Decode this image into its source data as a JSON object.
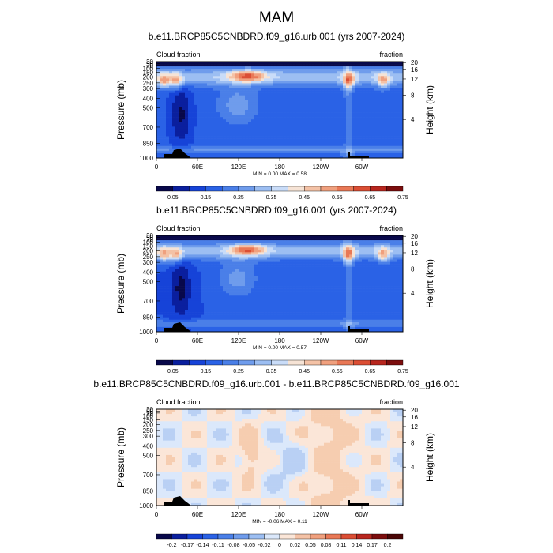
{
  "main_title": "MAM",
  "chart_data": [
    {
      "type": "heatmap",
      "title": "b.e11.BRCP85C5CNBDRD.f09_g16.urb.001 (yrs 2007-2024)",
      "left_label": "Cloud fraction",
      "right_label": "fraction",
      "ylabel": "Pressure (mb)",
      "ylabel_right": "Height (km)",
      "x_ticks": [
        "0",
        "60E",
        "120E",
        "180",
        "120W",
        "60W"
      ],
      "y_ticks": [
        "30",
        "50",
        "70",
        "100",
        "150",
        "200",
        "250",
        "300",
        "400",
        "500",
        "700",
        "850",
        "1000"
      ],
      "y_right_ticks": [
        "20",
        "16",
        "12",
        "8",
        "4"
      ],
      "stats": "MIN =   0.00  MAX =   0.58",
      "colorbar_labels": [
        "0.05",
        "0.15",
        "0.25",
        "0.35",
        "0.45",
        "0.55",
        "0.65",
        "0.75"
      ],
      "min": 0.0,
      "max": 0.58
    },
    {
      "type": "heatmap",
      "title": "b.e11.BRCP85C5CNBDRD.f09_g16.001 (yrs 2007-2024)",
      "left_label": "Cloud fraction",
      "right_label": "fraction",
      "ylabel": "Pressure (mb)",
      "ylabel_right": "Height (km)",
      "x_ticks": [
        "0",
        "60E",
        "120E",
        "180",
        "120W",
        "60W"
      ],
      "y_ticks": [
        "30",
        "50",
        "70",
        "100",
        "150",
        "200",
        "250",
        "300",
        "400",
        "500",
        "700",
        "850",
        "1000"
      ],
      "y_right_ticks": [
        "20",
        "16",
        "12",
        "8",
        "4"
      ],
      "stats": "MIN =   0.00  MAX =   0.57",
      "colorbar_labels": [
        "0.05",
        "0.15",
        "0.25",
        "0.35",
        "0.45",
        "0.55",
        "0.65",
        "0.75"
      ],
      "min": 0.0,
      "max": 0.57
    },
    {
      "type": "heatmap",
      "title": "b.e11.BRCP85C5CNBDRD.f09_g16.urb.001 - b.e11.BRCP85C5CNBDRD.f09_g16.001",
      "left_label": "Cloud fraction",
      "right_label": "fraction",
      "ylabel": "Pressure (mb)",
      "ylabel_right": "Height (km)",
      "x_ticks": [
        "0",
        "60E",
        "120E",
        "180",
        "120W",
        "60W"
      ],
      "y_ticks": [
        "30",
        "50",
        "70",
        "100",
        "150",
        "200",
        "250",
        "300",
        "400",
        "500",
        "700",
        "850",
        "1000"
      ],
      "y_right_ticks": [
        "20",
        "16",
        "12",
        "8",
        "4"
      ],
      "stats": "MIN =  -0.06  MAX =   0.11",
      "colorbar_labels": [
        "-0.2",
        "-0.17",
        "-0.14",
        "-0.11",
        "-0.08",
        "-0.05",
        "-0.02",
        "0",
        "0.02",
        "0.05",
        "0.08",
        "0.11",
        "0.14",
        "0.17",
        "0.2"
      ],
      "min": -0.06,
      "max": 0.11
    }
  ],
  "colors": {
    "seq": [
      "#08084a",
      "#0a1f9e",
      "#1643d8",
      "#2a62e6",
      "#4a7fe8",
      "#6f9cec",
      "#9cbef2",
      "#c9dcf8",
      "#f6e3d5",
      "#f4c2a6",
      "#f0a07e",
      "#e97856",
      "#db4e34",
      "#b8261e",
      "#7c0d0d"
    ],
    "div": [
      "#08084a",
      "#0a1f9e",
      "#1643d8",
      "#2a62e6",
      "#4a7fe8",
      "#6f9cec",
      "#9cbef2",
      "#dbe8fb",
      "#fbe6d8",
      "#f4c2a6",
      "#f0a07e",
      "#e97856",
      "#db4e34",
      "#b8261e",
      "#7c0d0d",
      "#4a0606"
    ]
  }
}
